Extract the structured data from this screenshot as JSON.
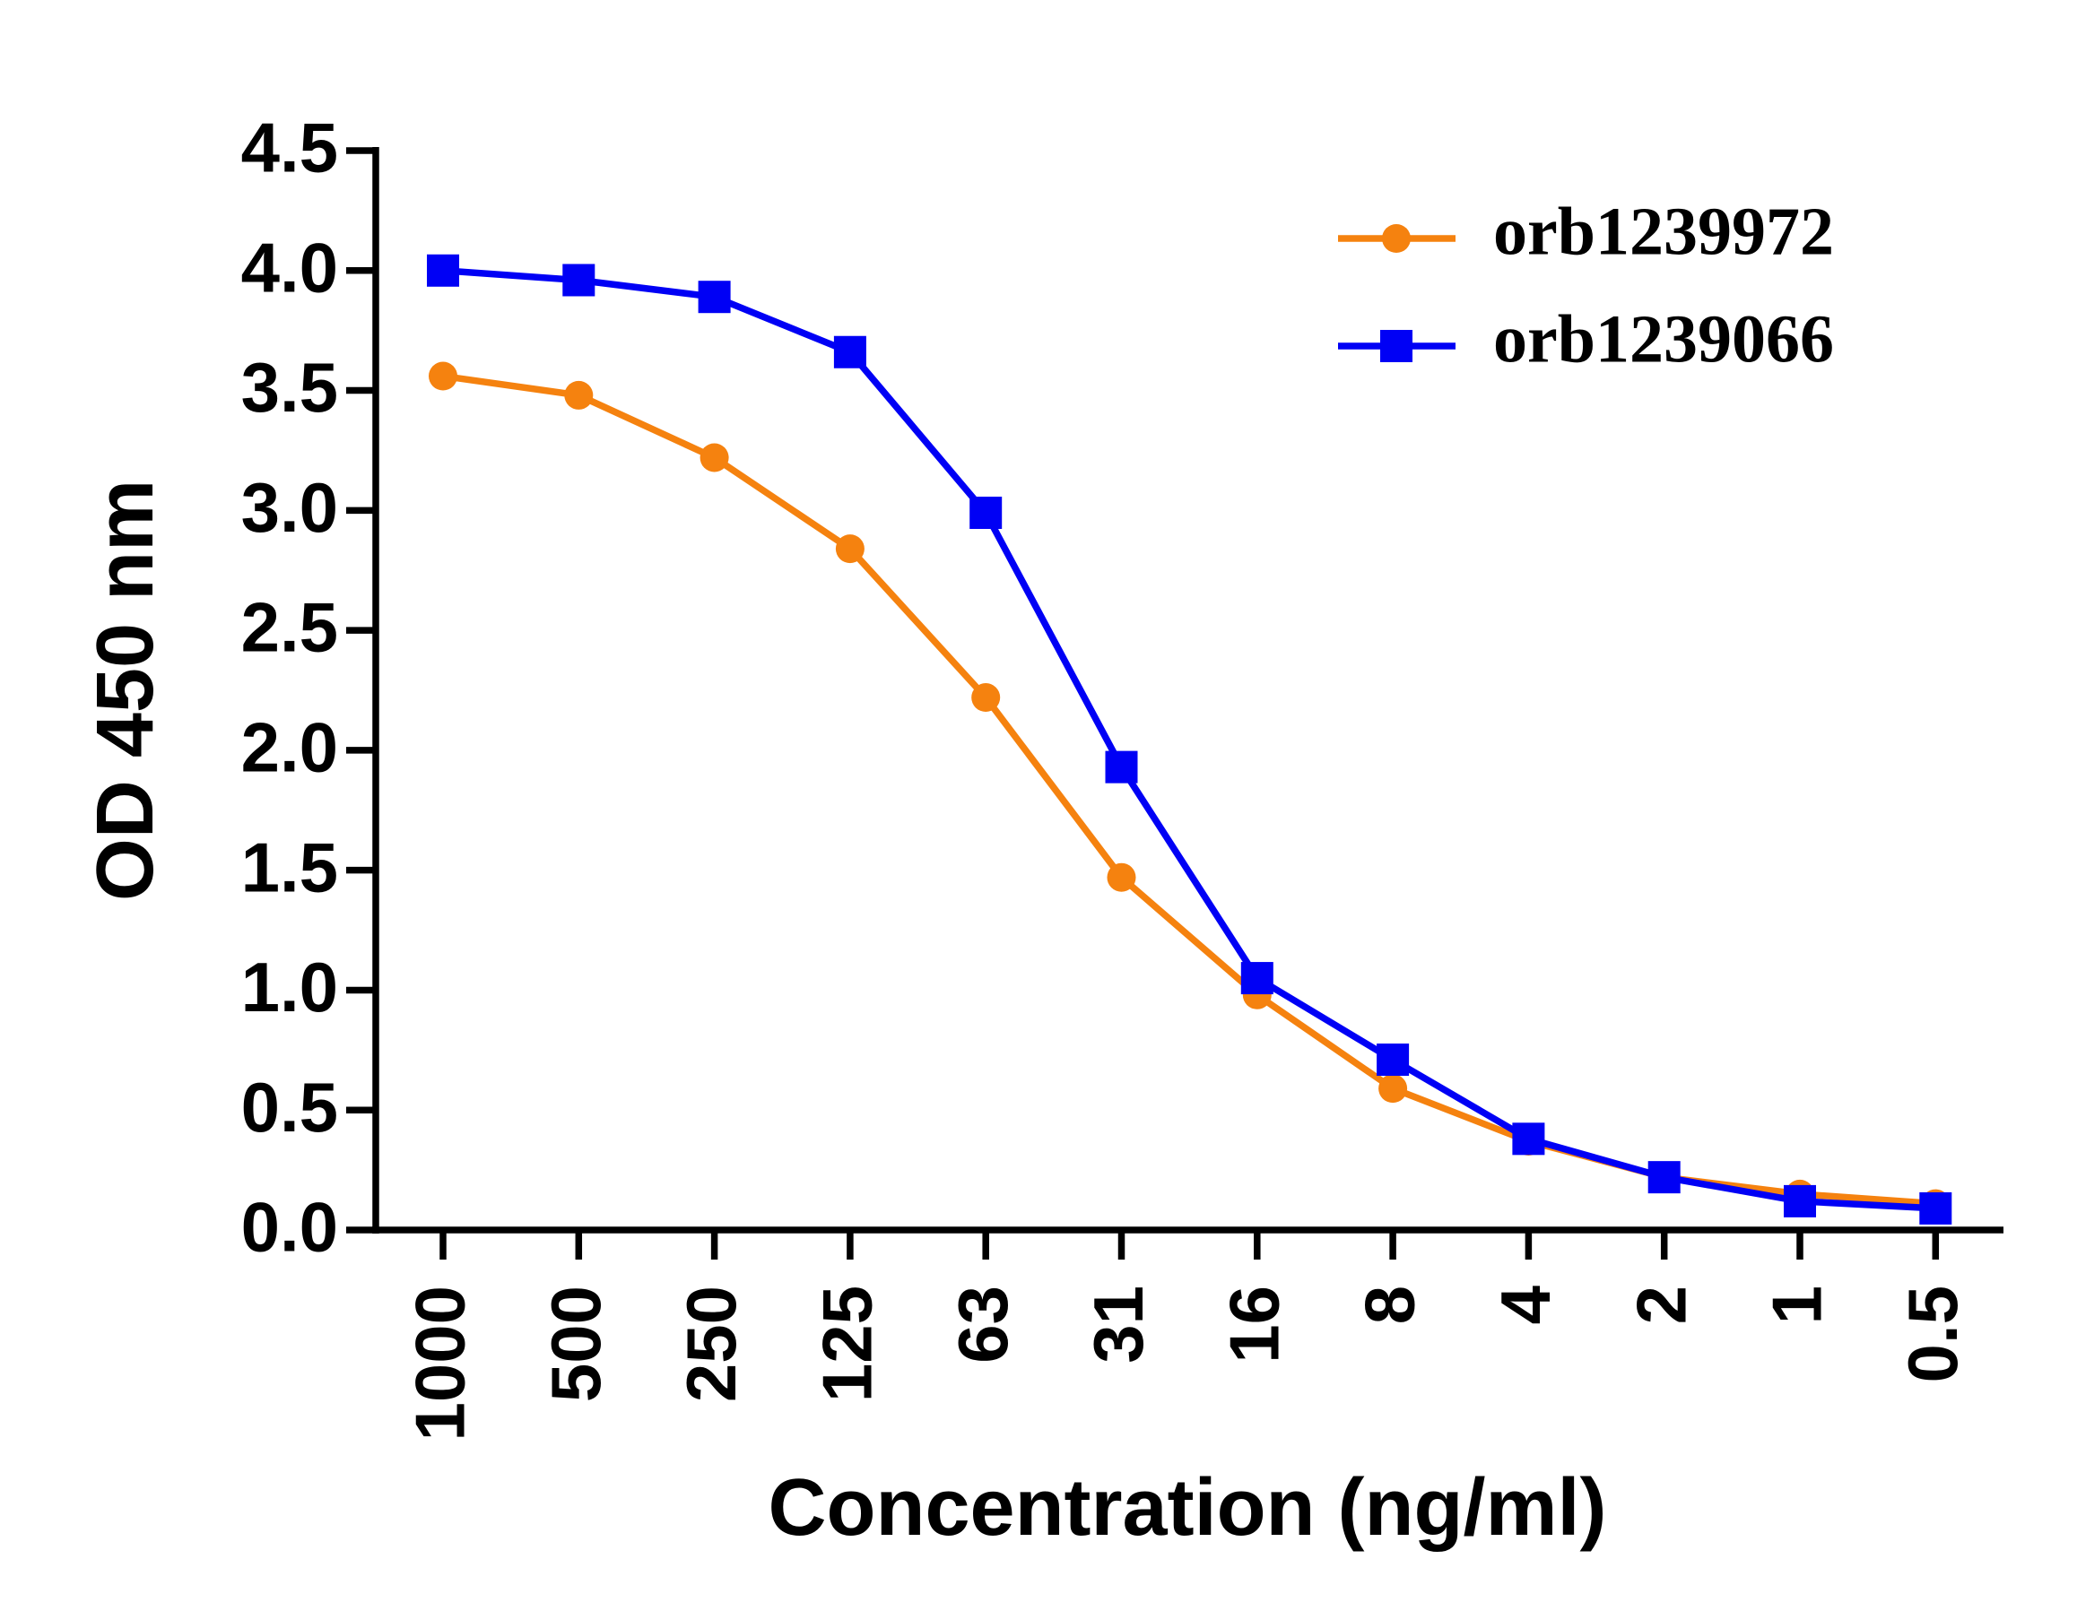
{
  "chart_data": {
    "type": "line",
    "x_label": "Concentration (ng/ml)",
    "y_label": "OD 450 nm",
    "categories": [
      "1000",
      "500",
      "250",
      "125",
      "63",
      "31",
      "16",
      "8",
      "4",
      "2",
      "1",
      "0.5"
    ],
    "series": [
      {
        "name": "orb1239972",
        "color": "#f5820f",
        "marker": "circle",
        "values": [
          3.56,
          3.48,
          3.22,
          2.84,
          2.22,
          1.47,
          0.98,
          0.59,
          0.37,
          0.22,
          0.15,
          0.11
        ]
      },
      {
        "name": "orb1239066",
        "color": "#0000f5",
        "marker": "square",
        "values": [
          4.0,
          3.96,
          3.89,
          3.66,
          2.99,
          1.93,
          1.05,
          0.71,
          0.38,
          0.22,
          0.12,
          0.09
        ]
      }
    ],
    "ylim": [
      0,
      4.5
    ],
    "yticks": [
      {
        "value": 0,
        "label": "0.0"
      },
      0.5,
      {
        "value": 1,
        "label": "1.0"
      },
      1.5,
      {
        "value": 2,
        "label": "2.0"
      },
      2.5,
      {
        "value": 3,
        "label": "3.0"
      },
      3.5,
      {
        "value": 4,
        "label": "4.0"
      },
      4.5
    ],
    "grid": false,
    "legend": "upper right"
  }
}
